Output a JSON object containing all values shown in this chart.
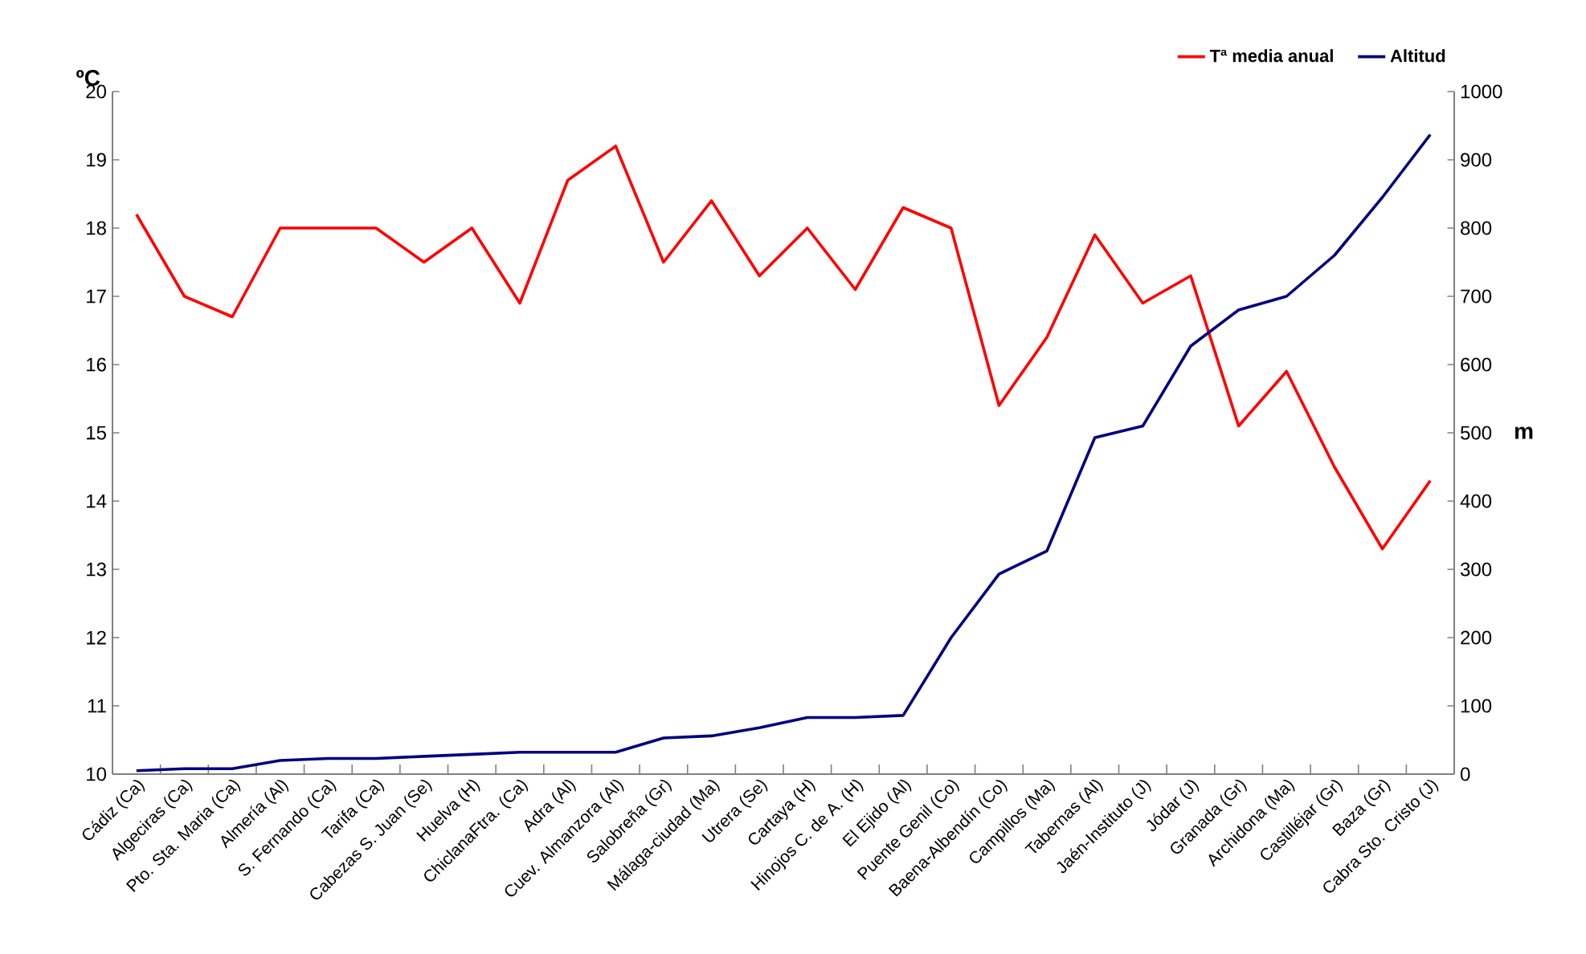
{
  "chart_data": {
    "type": "line",
    "ylabel": "ºC",
    "y2label": "m",
    "legend": "top right",
    "marker": "none",
    "categories": [
      "Cádiz (Ca)",
      "Algeciras (Ca)",
      "Pto. Sta. Maria (Ca)",
      "Almería (Al)",
      "S. Fernando (Ca)",
      "Tarifa (Ca)",
      "Cabezas S. Juan (Se)",
      "Huelva (H)",
      "ChiclanaFtra. (Ca)",
      "Adra (Al)",
      "Cuev. Almanzora (Al)",
      "Salobreña (Gr)",
      "Málaga-ciudad (Ma)",
      "Utrera (Se)",
      "Cartaya (H)",
      "Hinojos C. de A. (H)",
      "El Ejido (Al)",
      "Puente Genil (Co)",
      "Baena-Albendín (Co)",
      "Campillos (Ma)",
      "Tabernas (Al)",
      "Jaén-Instituto (J)",
      "Jódar (J)",
      "Granada (Gr)",
      "Archidona (Ma)",
      "Castilléjar (Gr)",
      "Baza (Gr)",
      "Cabra Sto. Cristo (J)"
    ],
    "ylim": [
      10,
      20
    ],
    "yticks": [
      10,
      11,
      12,
      13,
      14,
      15,
      16,
      17,
      18,
      19,
      20
    ],
    "y2lim": [
      0,
      1000
    ],
    "y2ticks": [
      0,
      100,
      200,
      300,
      400,
      500,
      600,
      700,
      800,
      900,
      1000
    ],
    "series": [
      {
        "name": "Tª media anual",
        "color": "#ff0000",
        "values": [
          18.2,
          17.0,
          16.7,
          18.0,
          18.0,
          18.0,
          17.5,
          18.0,
          16.9,
          18.7,
          19.2,
          17.5,
          18.4,
          17.3,
          18.0,
          17.1,
          18.3,
          18.0,
          15.4,
          16.4,
          17.9,
          16.9,
          17.3,
          15.1,
          15.9,
          14.5,
          13.3,
          14.3
        ]
      },
      {
        "name": "Altitud",
        "color": "#000080",
        "axis": "y2",
        "values": [
          5,
          8,
          8,
          20,
          23,
          23,
          26,
          29,
          32,
          32,
          32,
          53,
          56,
          68,
          83,
          83,
          86,
          200,
          293,
          327,
          493,
          510,
          627,
          680,
          700,
          760,
          845,
          937
        ]
      }
    ]
  }
}
